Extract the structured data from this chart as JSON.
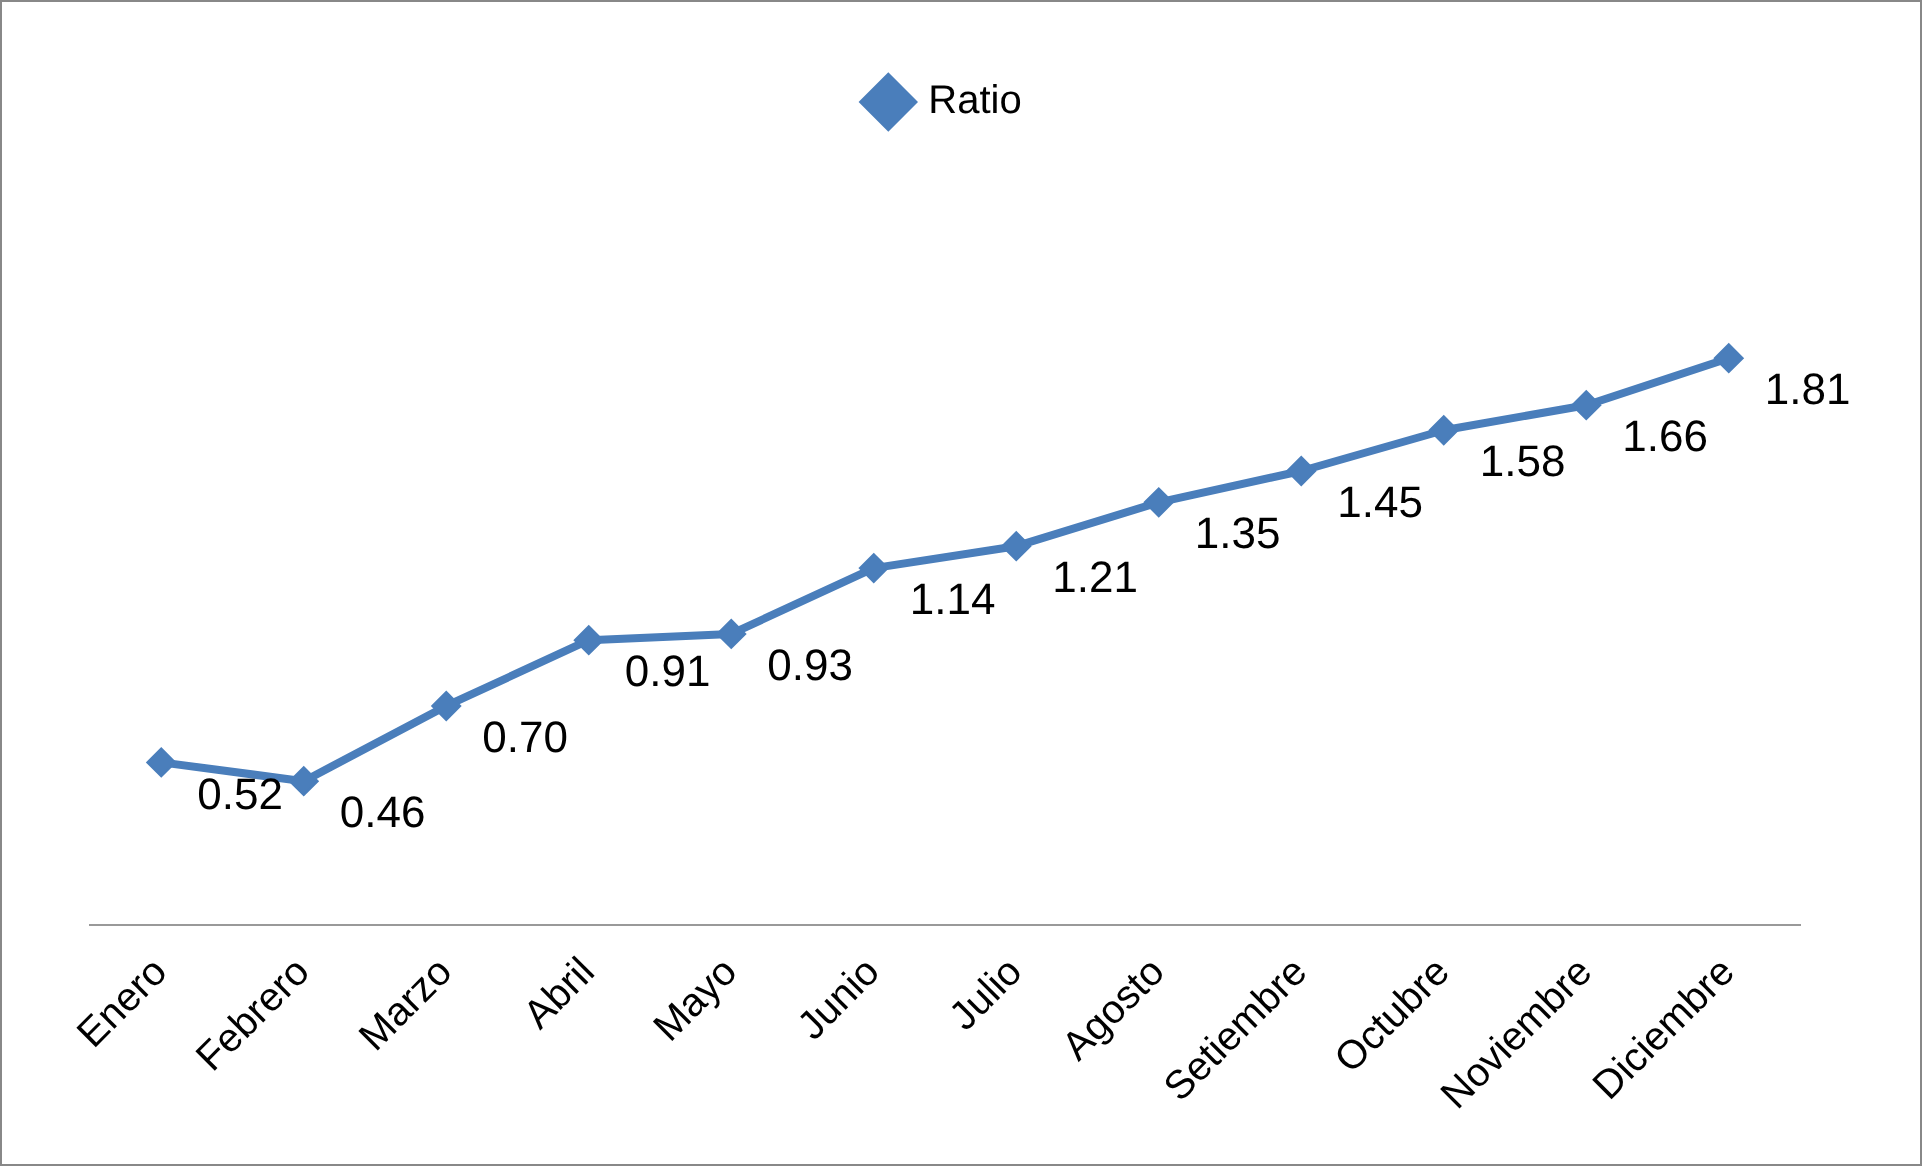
{
  "chart_data": {
    "type": "line",
    "categories": [
      "Enero",
      "Febrero",
      "Marzo",
      "Abril",
      "Mayo",
      "Junio",
      "Julio",
      "Agosto",
      "Setiembre",
      "Octubre",
      "Noviembre",
      "Diciembre"
    ],
    "series": [
      {
        "name": "Ratio",
        "color": "#4a7ebb",
        "values": [
          0.52,
          0.46,
          0.7,
          0.91,
          0.93,
          1.14,
          1.21,
          1.35,
          1.45,
          1.58,
          1.66,
          1.81
        ],
        "value_labels": [
          "0.52",
          "0.46",
          "0.70",
          "0.91",
          "0.93",
          "1.14",
          "1.21",
          "1.35",
          "1.45",
          "1.58",
          "1.66",
          "1.81"
        ]
      }
    ],
    "legend": "top",
    "marker": "diamond",
    "line_style": "solid",
    "grid": false,
    "tick_labels": "x"
  }
}
